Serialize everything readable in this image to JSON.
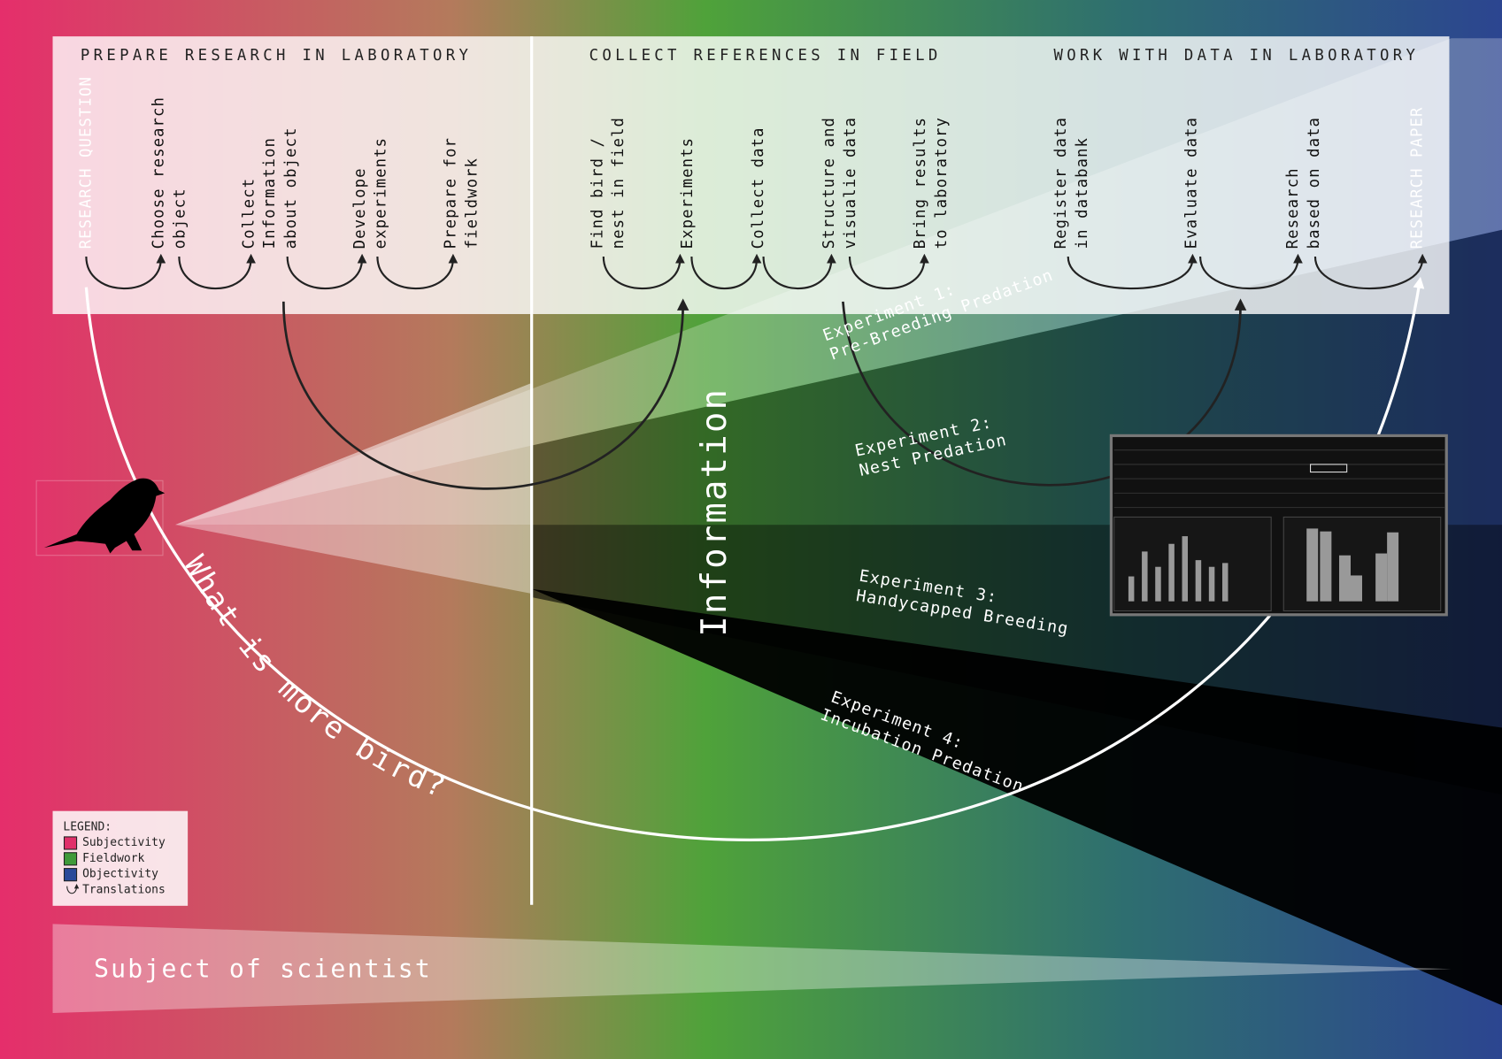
{
  "headers": [
    "PREPARE RESEARCH IN LABORATORY",
    "COLLECT REFERENCES IN FIELD",
    "WORK WITH DATA IN LABORATORY"
  ],
  "steps": [
    {
      "lines": [
        "RESEARCH QUESTION"
      ]
    },
    {
      "lines": [
        "Choose research",
        "object"
      ]
    },
    {
      "lines": [
        "Collect",
        "Information",
        "about object"
      ]
    },
    {
      "lines": [
        "Develope",
        "experiments"
      ]
    },
    {
      "lines": [
        "Prepare for",
        "fieldwork"
      ]
    },
    {
      "lines": [
        "Find bird /",
        "nest in field"
      ]
    },
    {
      "lines": [
        "Experiments"
      ]
    },
    {
      "lines": [
        "Collect data"
      ]
    },
    {
      "lines": [
        "Structure and",
        "visualie data"
      ]
    },
    {
      "lines": [
        "Bring results",
        "to laboratory"
      ]
    },
    {
      "lines": [
        "Register data",
        "in databank"
      ]
    },
    {
      "lines": [
        "Evaluate data"
      ]
    },
    {
      "lines": [
        "Research",
        "based on data"
      ]
    },
    {
      "lines": [
        "RESEARCH PAPER"
      ]
    }
  ],
  "information": "Information",
  "experiments": [
    {
      "lines": [
        "Experiment 1:",
        "Pre-Breeding Predation"
      ]
    },
    {
      "lines": [
        "Experiment 2:",
        "Nest Predation"
      ]
    },
    {
      "lines": [
        "Experiment 3:",
        "Handycapped Breeding"
      ]
    },
    {
      "lines": [
        "Experiment 4:",
        "Incubation Predation"
      ]
    }
  ],
  "question": "What is more bird?",
  "legend": {
    "title": "LEGEND:",
    "items": [
      {
        "label": "Subjectivity",
        "color": "#e0306a"
      },
      {
        "label": "Fieldwork",
        "color": "#3f9a3a"
      },
      {
        "label": "Objectivity",
        "color": "#2a4a9a"
      },
      {
        "label": "Translations"
      }
    ]
  },
  "subject": "Subject of scientist"
}
